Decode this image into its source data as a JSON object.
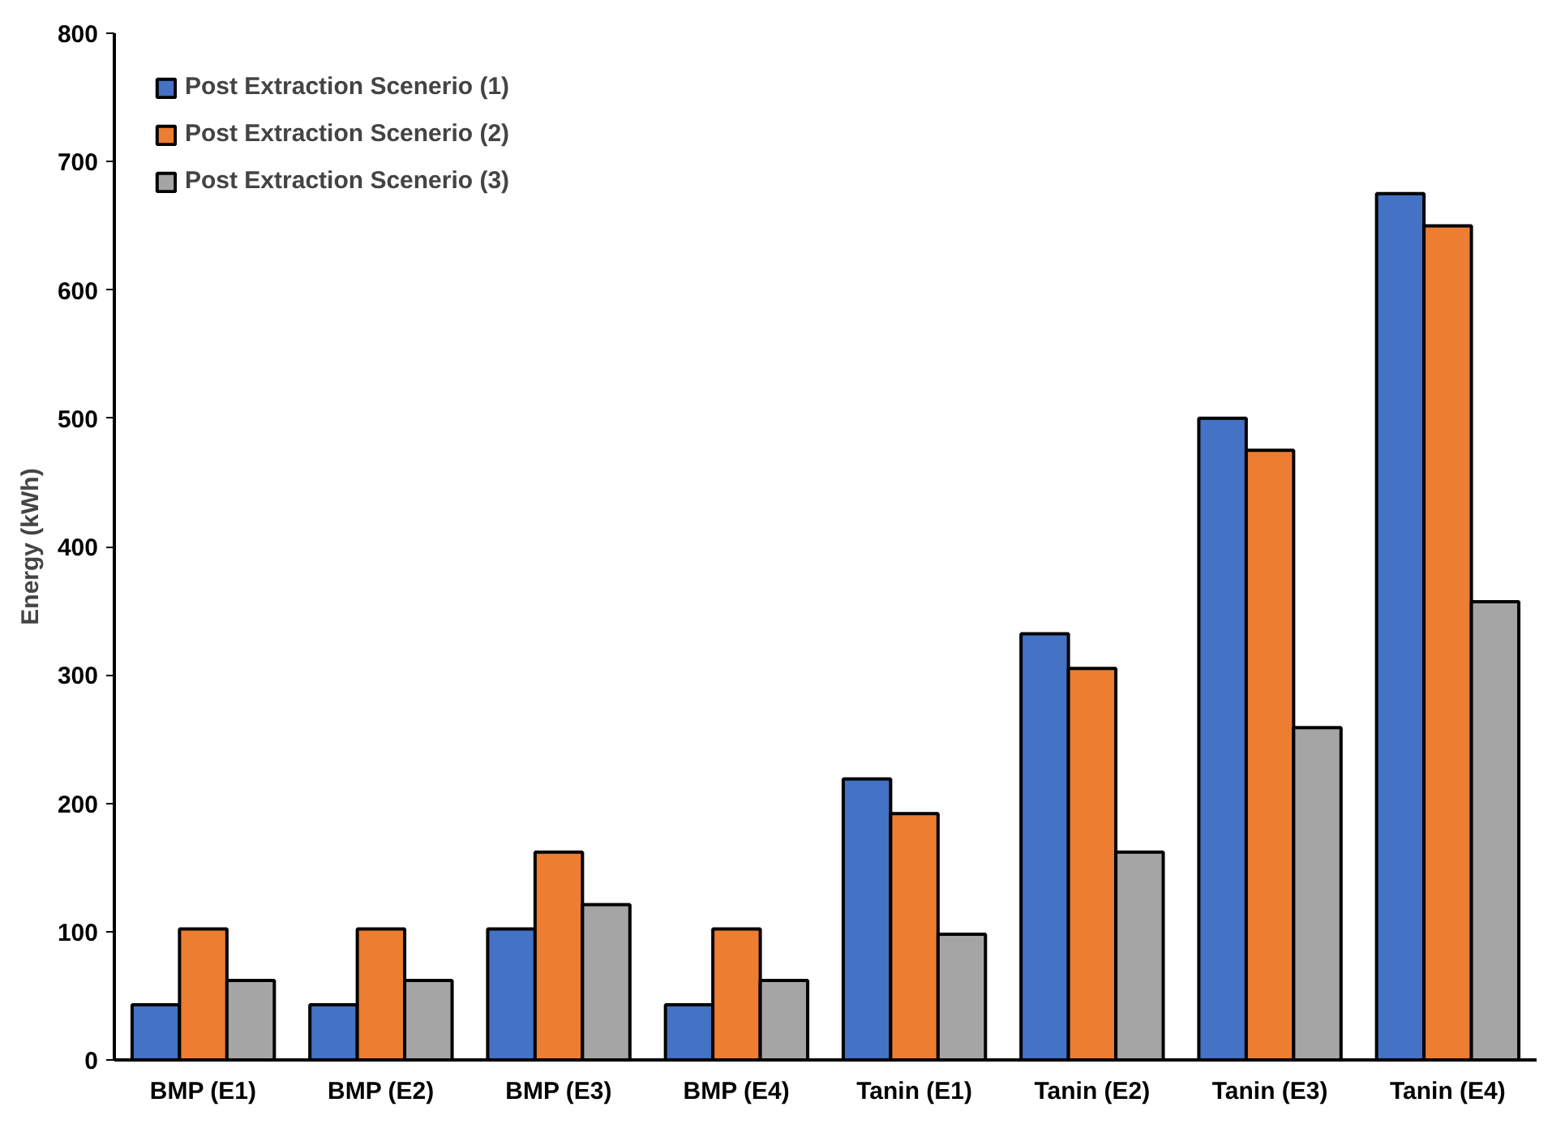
{
  "chart_data": {
    "type": "bar",
    "ylabel": "Energy (kWh)",
    "categories": [
      "BMP (E1)",
      "BMP (E2)",
      "BMP (E3)",
      "BMP (E4)",
      "Tanin (E1)",
      "Tanin (E2)",
      "Tanin (E3)",
      "Tanin (E4)"
    ],
    "series": [
      {
        "name": "Post Extraction Scenerio (1)",
        "color": "#4472c4",
        "values": [
          43,
          43,
          102,
          43,
          219,
          332,
          500,
          675
        ]
      },
      {
        "name": "Post Extraction Scenerio (2)",
        "color": "#ed7d31",
        "values": [
          102,
          102,
          162,
          102,
          192,
          305,
          475,
          650
        ]
      },
      {
        "name": "Post Extraction Scenerio (3)",
        "color": "#a5a5a5",
        "values": [
          62,
          62,
          121,
          62,
          98,
          162,
          259,
          357
        ]
      }
    ],
    "ylim": [
      0,
      800
    ],
    "yticks": [
      0,
      100,
      200,
      300,
      400,
      500,
      600,
      700,
      800
    ],
    "grid": false,
    "legend": "top left"
  }
}
